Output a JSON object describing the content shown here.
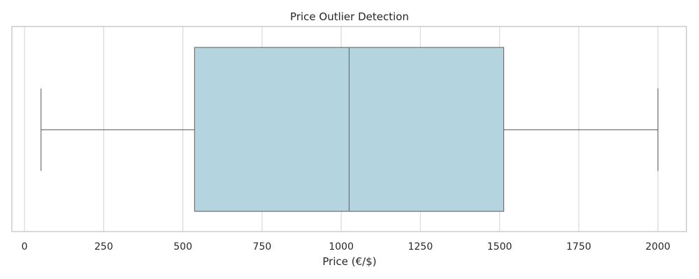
{
  "chart_data": {
    "type": "box",
    "title": "Price Outlier Detection",
    "xlabel": "Price (€/$)",
    "ylabel": "",
    "xlim": [
      -40,
      2090
    ],
    "x_ticks": [
      0,
      250,
      500,
      750,
      1000,
      1250,
      1500,
      1750,
      2000
    ],
    "x_tick_labels": [
      "0",
      "250",
      "500",
      "750",
      "1000",
      "1250",
      "1500",
      "1750",
      "2000"
    ],
    "grid": true,
    "orientation": "horizontal",
    "box": {
      "min": 52,
      "q1": 537,
      "median": 1025,
      "q3": 1513,
      "max": 2000,
      "outliers": []
    },
    "colors": {
      "box_fill": "#b4d5e0",
      "lines": "#707070",
      "grid": "#d9d9d9",
      "frame": "#cccccc"
    }
  }
}
